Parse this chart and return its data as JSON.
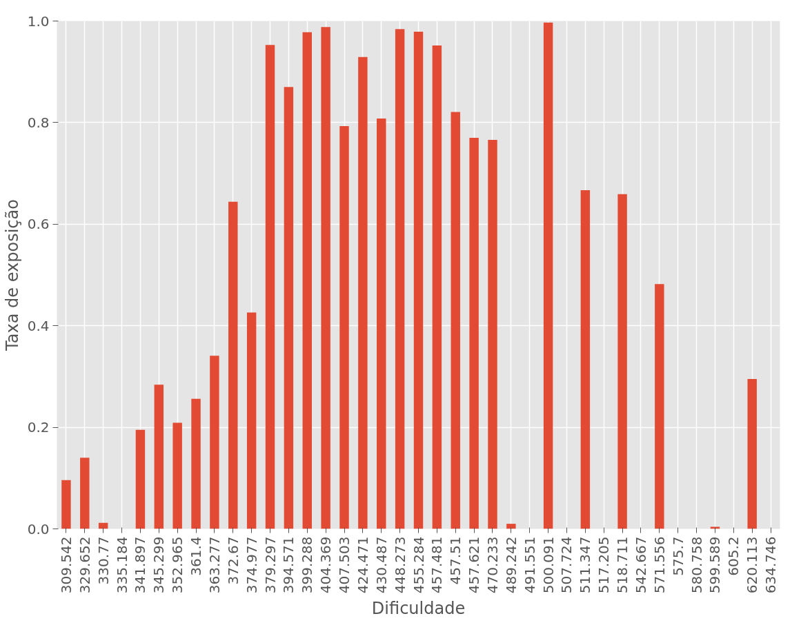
{
  "chart_data": {
    "type": "bar",
    "xlabel": "Dificuldade",
    "ylabel": "Taxa de exposição",
    "categories": [
      "309.542",
      "329.652",
      "330.77",
      "335.184",
      "341.897",
      "345.299",
      "352.965",
      "361.4",
      "363.277",
      "372.67",
      "374.977",
      "379.297",
      "394.571",
      "399.288",
      "404.369",
      "407.503",
      "424.471",
      "430.487",
      "448.273",
      "455.284",
      "457.481",
      "457.51",
      "457.621",
      "470.233",
      "489.242",
      "491.551",
      "500.091",
      "507.724",
      "511.347",
      "517.205",
      "518.711",
      "542.667",
      "571.556",
      "575.7",
      "580.758",
      "599.589",
      "605.2",
      "620.113",
      "634.746"
    ],
    "values": [
      0.096,
      0.14,
      0.012,
      0,
      0.195,
      0.284,
      0.209,
      0.256,
      0.341,
      0.644,
      0.426,
      0.953,
      0.87,
      0.978,
      0.988,
      0.793,
      0.929,
      0.808,
      0.984,
      0.979,
      0.952,
      0.821,
      0.77,
      0.766,
      0.01,
      0,
      0.997,
      0,
      0.667,
      0,
      0.659,
      0,
      0.482,
      0,
      0,
      0.004,
      0,
      0.295,
      0
    ],
    "color": "#e24a33",
    "ylim": [
      0,
      1
    ],
    "yticks": [
      {
        "value": 0,
        "label": "0.0"
      },
      0.2,
      0.4,
      0.6,
      0.8,
      {
        "value": 1,
        "label": "1.0"
      }
    ],
    "grid": true
  }
}
